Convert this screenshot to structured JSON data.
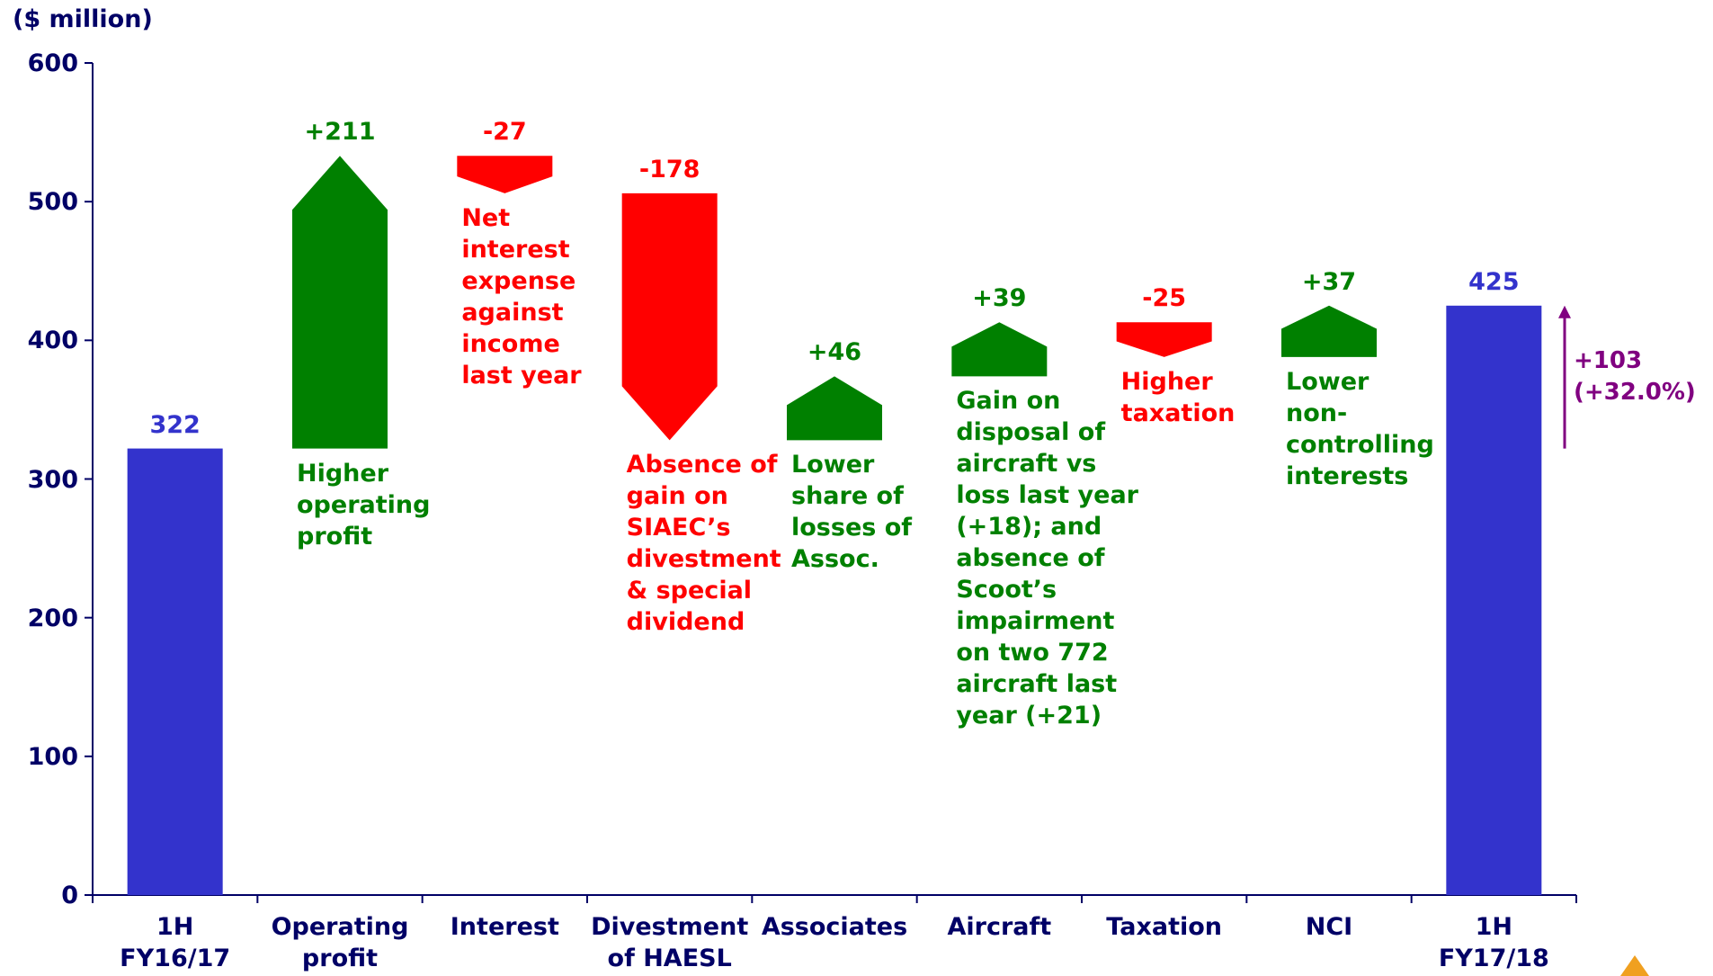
{
  "chart_data": {
    "type": "waterfall",
    "y_label": "($ million)",
    "categories": [
      "1H\nFY16/17",
      "Operating\nprofit",
      "Interest",
      "Divestment\nof HAESL",
      "Associates",
      "Aircraft",
      "Taxation",
      "NCI",
      "1H\nFY17/18"
    ],
    "values": [
      322,
      211,
      -27,
      -178,
      46,
      39,
      -25,
      37,
      425
    ],
    "value_labels": [
      "322",
      "+211",
      "-27",
      "-178",
      "+46",
      "+39",
      "-25",
      "+37",
      "425"
    ],
    "measure": [
      "absolute",
      "relative",
      "relative",
      "relative",
      "relative",
      "relative",
      "relative",
      "relative",
      "absolute"
    ],
    "notes": [
      null,
      "Higher\noperating\nprofit",
      "Net\ninterest\nexpense\nagainst\nincome\nlast year",
      "Absence of\ngain on\nSIAEC’s\ndivestment\n& special\ndividend",
      "Lower\nshare of\nlosses of\nAssoc.",
      "Gain on\ndisposal of\naircraft vs\nloss last year\n(+18); and\nabsence of\nScoot’s\nimpairment\non two 772\naircraft last\nyear (+21)",
      "Higher\ntaxation",
      "Lower\nnon-\ncontrolling\ninterests",
      null
    ],
    "change_label": "+103\n(+32.0%)",
    "colors": {
      "total": "#3333cc",
      "increase": "#008000",
      "decrease": "#ff0000",
      "change": "#800080",
      "axis": "#000066"
    },
    "ylim": [
      0,
      600
    ],
    "yticks": [
      0,
      100,
      200,
      300,
      400,
      500,
      600
    ]
  }
}
